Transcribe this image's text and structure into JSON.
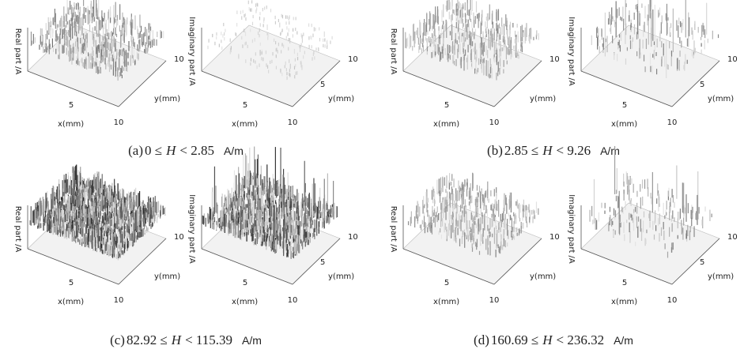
{
  "panels": [
    {
      "caption": {
        "label": "(a)",
        "lower": "0 ≤",
        "variable": "H",
        "upper": "< 2.85",
        "unit": "A/m"
      },
      "plots": [
        {
          "z_label": "Real part /A",
          "x_label": "x(mm)",
          "y_label": "y(mm)",
          "x_ticks": [
            "5",
            "10"
          ],
          "y_ticks": [
            "10"
          ]
        },
        {
          "z_label": "Imaginary part /A",
          "x_label": "x(mm)",
          "y_label": "y(mm)",
          "x_ticks": [
            "5",
            "10"
          ],
          "y_ticks": [
            "5",
            "10"
          ]
        }
      ]
    },
    {
      "caption": {
        "label": "(b)",
        "lower": "2.85 ≤",
        "variable": "H",
        "upper": "< 9.26",
        "unit": "A/m"
      },
      "plots": [
        {
          "z_label": "Real part /A",
          "x_label": "x(mm)",
          "y_label": "y(mm)",
          "x_ticks": [
            "5",
            "10"
          ],
          "y_ticks": [
            "10"
          ]
        },
        {
          "z_label": "Imaginary part /A",
          "x_label": "x(mm)",
          "y_label": "y(mm)",
          "x_ticks": [
            "5",
            "10"
          ],
          "y_ticks": [
            "5",
            "10"
          ]
        }
      ]
    },
    {
      "caption": {
        "label": "(c)",
        "lower": "82.92 ≤",
        "variable": "H",
        "upper": "< 115.39",
        "unit": "A/m"
      },
      "plots": [
        {
          "z_label": "Real part /A",
          "x_label": "x(mm)",
          "y_label": "y(mm)",
          "x_ticks": [
            "5",
            "10"
          ],
          "y_ticks": [
            "10"
          ]
        },
        {
          "z_label": "Imaginary part /A",
          "x_label": "x(mm)",
          "y_label": "y(mm)",
          "x_ticks": [
            "5",
            "10"
          ],
          "y_ticks": [
            "5",
            "10"
          ]
        }
      ]
    },
    {
      "caption": {
        "label": "(d)",
        "lower": "160.69 ≤",
        "variable": "H",
        "upper": "< 236.32",
        "unit": "A/m"
      },
      "plots": [
        {
          "z_label": "Real part /A",
          "x_label": "x(mm)",
          "y_label": "y(mm)",
          "x_ticks": [
            "5",
            "10"
          ],
          "y_ticks": [
            "10"
          ]
        },
        {
          "z_label": "Imaginary part /A",
          "x_label": "x(mm)",
          "y_label": "y(mm)",
          "x_ticks": [
            "5",
            "10"
          ],
          "y_ticks": [
            "5",
            "10"
          ]
        }
      ]
    }
  ]
}
